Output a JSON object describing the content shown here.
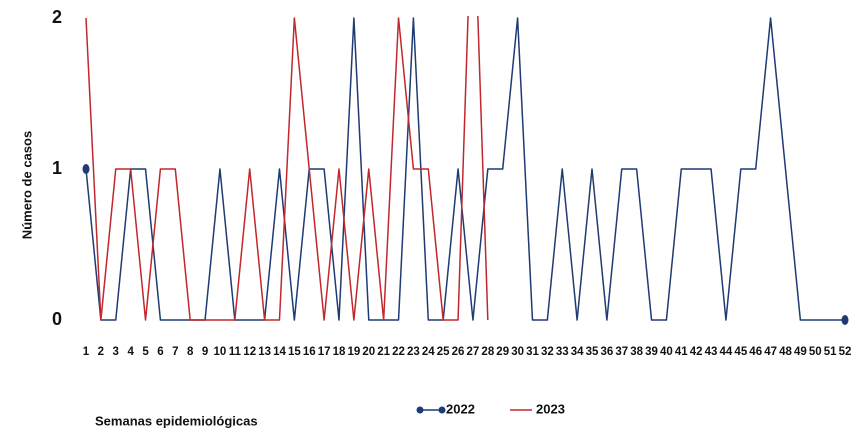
{
  "chart_data": {
    "type": "line",
    "x_label": "Semanas epidemiológicas",
    "y_label": "Número de casos",
    "categories": [
      "1",
      "2",
      "3",
      "4",
      "5",
      "6",
      "7",
      "8",
      "9",
      "10",
      "11",
      "12",
      "13",
      "14",
      "15",
      "16",
      "17",
      "18",
      "19",
      "20",
      "21",
      "22",
      "23",
      "24",
      "25",
      "26",
      "27",
      "28",
      "29",
      "30",
      "31",
      "32",
      "33",
      "34",
      "35",
      "36",
      "37",
      "38",
      "39",
      "40",
      "41",
      "42",
      "43",
      "44",
      "45",
      "46",
      "47",
      "48",
      "49",
      "50",
      "51",
      "52"
    ],
    "series": [
      {
        "name": "2022",
        "color": "#1f3b73",
        "values": [
          1,
          0,
          0,
          1,
          1,
          0,
          0,
          0,
          0,
          1,
          0,
          0,
          0,
          1,
          0,
          1,
          1,
          0,
          2,
          0,
          0,
          0,
          2,
          0,
          0,
          1,
          0,
          1,
          1,
          2,
          0,
          0,
          1,
          0,
          1,
          0,
          1,
          1,
          0,
          0,
          1,
          1,
          1,
          0,
          1,
          1,
          2,
          1,
          0,
          0,
          0,
          0
        ]
      },
      {
        "name": "2023",
        "color": "#c0282d",
        "values": [
          2,
          0,
          1,
          1,
          0,
          1,
          1,
          0,
          0,
          0,
          0,
          1,
          0,
          0,
          2,
          1,
          0,
          1,
          0,
          1,
          0,
          2,
          1,
          1,
          0,
          0,
          3,
          0,
          null,
          null,
          null,
          null,
          null,
          null,
          null,
          null,
          null,
          null,
          null,
          null,
          null,
          null,
          null,
          null,
          null,
          null,
          null,
          null,
          null,
          null,
          null,
          null
        ]
      }
    ],
    "ylim": [
      0,
      2
    ],
    "yticks": [
      0,
      1,
      2
    ],
    "grid": false
  }
}
